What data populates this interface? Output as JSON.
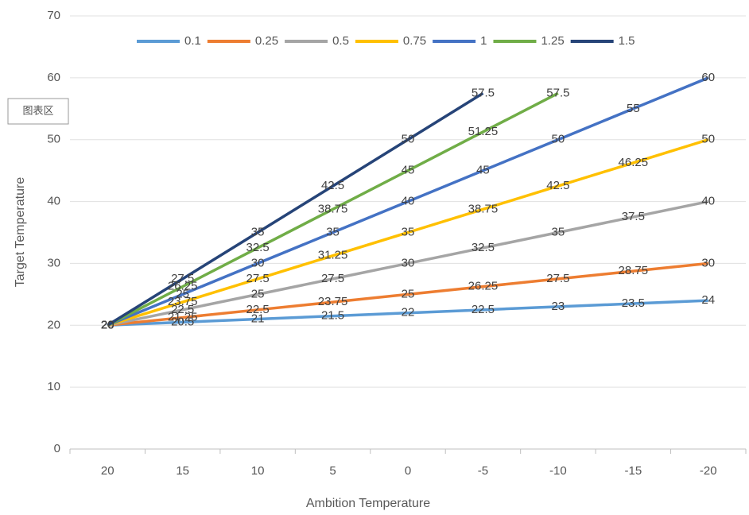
{
  "chart_data": {
    "type": "line",
    "x_label": "Ambition Temperature",
    "y_label": "Target Temperature",
    "tooltip": "图表区",
    "categories": [
      20,
      15,
      10,
      5,
      0,
      -5,
      -10,
      -15,
      -20
    ],
    "series": [
      {
        "name": "0.1",
        "color": "#5b9bd5",
        "values": [
          20,
          20.5,
          21,
          21.5,
          22,
          22.5,
          23,
          23.5,
          24
        ]
      },
      {
        "name": "0.25",
        "color": "#ed7d31",
        "values": [
          20,
          21.25,
          22.5,
          23.75,
          25,
          26.25,
          27.5,
          28.75,
          30
        ]
      },
      {
        "name": "0.5",
        "color": "#a5a5a5",
        "values": [
          20,
          22.5,
          25,
          27.5,
          30,
          32.5,
          35,
          37.5,
          40
        ]
      },
      {
        "name": "0.75",
        "color": "#ffc000",
        "values": [
          20,
          23.75,
          27.5,
          31.25,
          35,
          38.75,
          42.5,
          46.25,
          50
        ]
      },
      {
        "name": "1",
        "color": "#4472c4",
        "values": [
          20,
          25,
          30,
          35,
          40,
          45,
          50,
          55,
          60
        ]
      },
      {
        "name": "1.25",
        "color": "#70ad47",
        "values": [
          20,
          26.25,
          32.5,
          38.75,
          45,
          51.25,
          57.5,
          null,
          null
        ]
      },
      {
        "name": "1.5",
        "color": "#264478",
        "values": [
          20,
          27.5,
          35,
          42.5,
          50,
          57.5,
          null,
          null,
          null
        ]
      }
    ],
    "ylim": [
      0,
      70
    ],
    "yticks": [
      0,
      10,
      20,
      30,
      40,
      50,
      60,
      70
    ],
    "grid": true,
    "legend": "top"
  }
}
